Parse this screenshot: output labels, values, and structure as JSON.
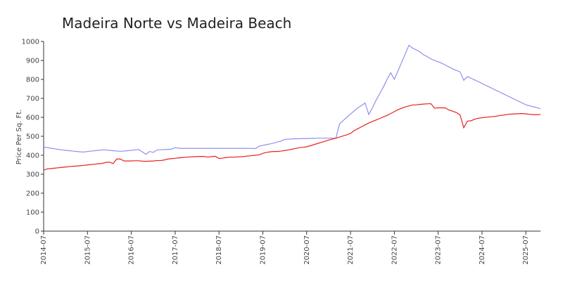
{
  "chart_data": {
    "type": "line",
    "title": "Madeira Norte vs Madeira Beach",
    "y_label": "Price Per Sq. Ft.",
    "x": [
      "2014-07",
      "2014-08",
      "2014-09",
      "2014-10",
      "2014-11",
      "2014-12",
      "2015-01",
      "2015-02",
      "2015-03",
      "2015-04",
      "2015-05",
      "2015-06",
      "2015-07",
      "2015-08",
      "2015-09",
      "2015-10",
      "2015-11",
      "2015-12",
      "2016-01",
      "2016-02",
      "2016-03",
      "2016-04",
      "2016-05",
      "2016-06",
      "2016-07",
      "2016-08",
      "2016-09",
      "2016-10",
      "2016-11",
      "2016-12",
      "2017-01",
      "2017-02",
      "2017-03",
      "2017-04",
      "2017-05",
      "2017-06",
      "2017-07",
      "2017-08",
      "2017-09",
      "2017-10",
      "2017-11",
      "2017-12",
      "2018-01",
      "2018-02",
      "2018-03",
      "2018-04",
      "2018-05",
      "2018-06",
      "2018-07",
      "2018-08",
      "2018-09",
      "2018-10",
      "2018-11",
      "2018-12",
      "2019-01",
      "2019-02",
      "2019-03",
      "2019-04",
      "2019-05",
      "2019-06",
      "2019-07",
      "2019-08",
      "2019-09",
      "2019-10",
      "2019-11",
      "2019-12",
      "2020-01",
      "2020-02",
      "2020-03",
      "2020-04",
      "2020-05",
      "2020-06",
      "2020-07",
      "2020-08",
      "2020-09",
      "2020-10",
      "2020-11",
      "2020-12",
      "2021-01",
      "2021-02",
      "2021-03",
      "2021-04",
      "2021-05",
      "2021-06",
      "2021-07",
      "2021-08",
      "2021-09",
      "2021-10",
      "2021-11",
      "2021-12",
      "2022-01",
      "2022-02",
      "2022-03",
      "2022-04",
      "2022-05",
      "2022-06",
      "2022-07",
      "2022-08",
      "2022-09",
      "2022-10",
      "2022-11",
      "2022-12",
      "2023-01",
      "2023-02",
      "2023-03",
      "2023-04",
      "2023-05",
      "2023-06",
      "2023-07",
      "2023-08",
      "2023-09",
      "2023-10",
      "2023-11",
      "2023-12",
      "2024-01",
      "2024-02",
      "2024-03",
      "2024-04",
      "2024-05",
      "2024-06",
      "2024-07",
      "2024-08",
      "2024-09",
      "2024-10",
      "2024-11",
      "2024-12",
      "2025-01",
      "2025-02",
      "2025-03",
      "2025-04",
      "2025-05",
      "2025-06",
      "2025-07",
      "2025-08",
      "2025-09",
      "2025-10",
      "2025-11"
    ],
    "series": [
      {
        "color": "#8f8ff0",
        "values": [
          443,
          440,
          437,
          434,
          431,
          428,
          426,
          424,
          422,
          420,
          418,
          417,
          420,
          422,
          424,
          426,
          428,
          428,
          426,
          424,
          422,
          421,
          422,
          424,
          426,
          428,
          430,
          418,
          405,
          420,
          415,
          428,
          429,
          430,
          431,
          432,
          440,
          437,
          436,
          436,
          436,
          436,
          436,
          436,
          436,
          436,
          436,
          436,
          436,
          436,
          436,
          436,
          436,
          436,
          436,
          436,
          436,
          436,
          435,
          448,
          452,
          456,
          460,
          464,
          470,
          475,
          484,
          485,
          486,
          487,
          487,
          488,
          488,
          489,
          489,
          490,
          490,
          490,
          490,
          490,
          490,
          565,
          583,
          600,
          617,
          634,
          650,
          662,
          675,
          615,
          650,
          690,
          725,
          760,
          800,
          835,
          800,
          845,
          890,
          935,
          980,
          965,
          955,
          945,
          930,
          920,
          908,
          900,
          893,
          885,
          875,
          865,
          855,
          847,
          840,
          795,
          815,
          806,
          797,
          788,
          778,
          769,
          760,
          750,
          741,
          732,
          722,
          713,
          704,
          694,
          685,
          676,
          666,
          661,
          656,
          651,
          645
        ]
      },
      {
        "color": "#e82020",
        "values": [
          322,
          328,
          330,
          332,
          334,
          336,
          338,
          340,
          342,
          343,
          345,
          347,
          349,
          351,
          353,
          355,
          357,
          362,
          364,
          356,
          380,
          380,
          370,
          370,
          370,
          371,
          371,
          369,
          368,
          369,
          370,
          372,
          372,
          375,
          380,
          382,
          384,
          386,
          388,
          390,
          391,
          392,
          393,
          394,
          393,
          390,
          393,
          395,
          383,
          385,
          388,
          390,
          390,
          391,
          392,
          394,
          396,
          398,
          400,
          402,
          410,
          415,
          418,
          420,
          420,
          422,
          425,
          428,
          432,
          436,
          440,
          442,
          445,
          450,
          456,
          462,
          468,
          474,
          480,
          485,
          490,
          496,
          502,
          508,
          515,
          530,
          540,
          550,
          560,
          570,
          578,
          586,
          594,
          602,
          610,
          620,
          630,
          640,
          648,
          655,
          660,
          665,
          666,
          668,
          670,
          671,
          672,
          648,
          650,
          650,
          649,
          638,
          632,
          625,
          612,
          545,
          580,
          582,
          590,
          595,
          598,
          600,
          602,
          604,
          606,
          610,
          612,
          615,
          617,
          618,
          619,
          620,
          618,
          616,
          614,
          614,
          615
        ]
      }
    ],
    "xlim": [
      "2014-07",
      "2025-11"
    ],
    "xticks": [
      "2014-07",
      "2015-07",
      "2016-07",
      "2017-07",
      "2018-07",
      "2019-07",
      "2020-07",
      "2021-07",
      "2022-07",
      "2023-07",
      "2024-07",
      "2025-07"
    ],
    "ylim": [
      0,
      1000
    ],
    "yticks": [
      0,
      100,
      200,
      300,
      400,
      500,
      600,
      700,
      800,
      900,
      1000
    ]
  }
}
